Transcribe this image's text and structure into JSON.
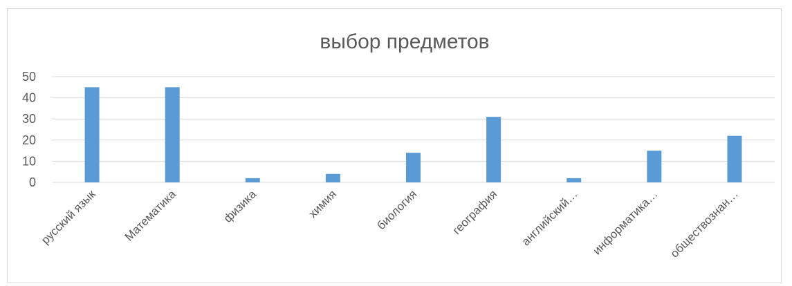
{
  "chart_data": {
    "type": "bar",
    "title": "выбор предметов",
    "categories": [
      "русский язык",
      "Математика",
      "физика",
      "химия",
      "биология",
      "география",
      "английский…",
      "информатика…",
      "обществознан…"
    ],
    "values": [
      45,
      45,
      2,
      4,
      14,
      31,
      2,
      15,
      22
    ],
    "ylim": [
      0,
      50
    ],
    "yticks": [
      "0",
      "10",
      "20",
      "30",
      "40",
      "50"
    ],
    "grid": true,
    "bar_color": "#5b9bd5"
  }
}
